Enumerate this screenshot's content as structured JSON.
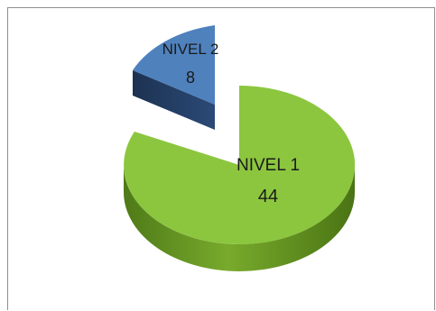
{
  "chart_data": {
    "type": "pie",
    "title": "",
    "slices": [
      {
        "label": "NIVEL 1",
        "value": 44,
        "color": "#8cc63f",
        "exploded": false
      },
      {
        "label": "NIVEL 2",
        "value": 8,
        "color": "#4f81bd",
        "exploded": true
      }
    ],
    "style": "3d-exploded",
    "legend": "none"
  }
}
